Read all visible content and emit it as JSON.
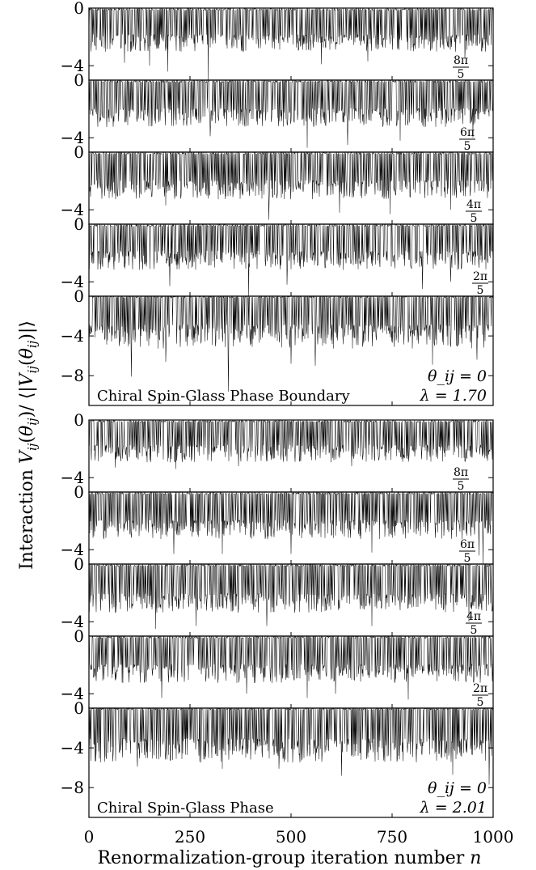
{
  "figure": {
    "ylabel": "Interaction V_ij(θ_ij)/ ⟨|V_ij(θ_ij)|⟩",
    "xlabel": "Renormalization-group iteration number n"
  },
  "chart_data": [
    {
      "type": "line",
      "block": "Chiral Spin-Glass Phase Boundary",
      "annotation": "Chiral Spin-Glass Phase Boundary",
      "lambda_label": "λ = 1.70",
      "theta_label": "θ_ij = 0",
      "xlim": [
        0,
        1000
      ],
      "x_ticks": [
        0,
        250,
        500,
        750,
        1000
      ],
      "series": [
        {
          "label": "8π/5",
          "frac_num": "8π",
          "frac_den": "5",
          "ylim": [
            -5,
            0
          ],
          "y_ticks": [
            "0",
            "−4"
          ],
          "mean": -1.5,
          "spread": 0.55,
          "spikes": [
            [
              88,
              -3.8
            ],
            [
              150,
              -4.0
            ],
            [
              195,
              -4.4
            ],
            [
              295,
              -5.0
            ],
            [
              575,
              -3.9
            ],
            [
              690,
              -3.7
            ],
            [
              930,
              -3.5
            ]
          ]
        },
        {
          "label": "6π/5",
          "frac_num": "6π",
          "frac_den": "5",
          "ylim": [
            -5,
            0
          ],
          "y_ticks": [
            "0",
            "−4"
          ],
          "mean": -1.6,
          "spread": 0.6,
          "spikes": [
            [
              300,
              -3.9
            ],
            [
              540,
              -4.7
            ],
            [
              640,
              -4.5
            ],
            [
              770,
              -4.2
            ],
            [
              950,
              -4.0
            ]
          ]
        },
        {
          "label": "4π/5",
          "frac_num": "4π",
          "frac_den": "5",
          "ylim": [
            -5,
            0
          ],
          "y_ticks": [
            "0",
            "−4"
          ],
          "mean": -1.6,
          "spread": 0.6,
          "spikes": [
            [
              190,
              -3.7
            ],
            [
              445,
              -4.7
            ],
            [
              620,
              -4.2
            ],
            [
              745,
              -4.3
            ],
            [
              895,
              -4.0
            ]
          ]
        },
        {
          "label": "2π/5",
          "frac_num": "2π",
          "frac_den": "5",
          "ylim": [
            -5,
            0
          ],
          "y_ticks": [
            "0",
            "−4"
          ],
          "mean": -1.5,
          "spread": 0.6,
          "spikes": [
            [
              200,
              -4.3
            ],
            [
              395,
              -5.0
            ],
            [
              490,
              -4.2
            ],
            [
              825,
              -4.5
            ],
            [
              895,
              -4.0
            ]
          ]
        },
        {
          "label": "0",
          "frac_num": "",
          "frac_den": "",
          "ylim": [
            -11,
            0
          ],
          "y_ticks": [
            "0",
            "−4",
            "−8"
          ],
          "mean": -2.2,
          "spread": 1.1,
          "spikes": [
            [
              105,
              -8.1
            ],
            [
              190,
              -6.6
            ],
            [
              345,
              -9.6
            ],
            [
              500,
              -6.8
            ],
            [
              560,
              -7.0
            ],
            [
              850,
              -6.9
            ],
            [
              960,
              -6.4
            ]
          ]
        }
      ]
    },
    {
      "type": "line",
      "block": "Chiral Spin-Glass Phase",
      "annotation": "Chiral Spin-Glass Phase",
      "lambda_label": "λ = 2.01",
      "theta_label": "θ_ij = 0",
      "xlim": [
        0,
        1000
      ],
      "x_ticks": [
        0,
        250,
        500,
        750,
        1000
      ],
      "series": [
        {
          "label": "8π/5",
          "frac_num": "8π",
          "frac_den": "5",
          "ylim": [
            -5,
            0
          ],
          "y_ticks": [
            "0",
            "−4"
          ],
          "mean": -1.4,
          "spread": 0.55,
          "spikes": [
            [
              65,
              -3.3
            ],
            [
              215,
              -3.4
            ],
            [
              370,
              -3.2
            ],
            [
              650,
              -3.2
            ]
          ]
        },
        {
          "label": "6π/5",
          "frac_num": "6π",
          "frac_den": "5",
          "ylim": [
            -5,
            0
          ],
          "y_ticks": [
            "0",
            "−4"
          ],
          "mean": -1.6,
          "spread": 0.6,
          "spikes": [
            [
              210,
              -4.3
            ],
            [
              330,
              -4.3
            ],
            [
              500,
              -4.3
            ],
            [
              700,
              -4.2
            ],
            [
              965,
              -4.4
            ],
            [
              975,
              -5.0
            ]
          ]
        },
        {
          "label": "4π/5",
          "frac_num": "4π",
          "frac_den": "5",
          "ylim": [
            -5,
            0
          ],
          "y_ticks": [
            "0",
            "−4"
          ],
          "mean": -1.7,
          "spread": 0.6,
          "spikes": [
            [
              165,
              -4.5
            ],
            [
              265,
              -4.3
            ],
            [
              440,
              -4.3
            ],
            [
              700,
              -4.3
            ],
            [
              940,
              -4.0
            ]
          ]
        },
        {
          "label": "2π/5",
          "frac_num": "2π",
          "frac_den": "5",
          "ylim": [
            -5,
            0
          ],
          "y_ticks": [
            "0",
            "−4"
          ],
          "mean": -1.6,
          "spread": 0.6,
          "spikes": [
            [
              180,
              -4.3
            ],
            [
              390,
              -4.0
            ],
            [
              540,
              -4.3
            ],
            [
              610,
              -4.0
            ],
            [
              790,
              -4.4
            ]
          ]
        },
        {
          "label": "0",
          "frac_num": "",
          "frac_den": "",
          "ylim": [
            -11,
            0
          ],
          "y_ticks": [
            "0",
            "−4",
            "−8"
          ],
          "mean": -2.4,
          "spread": 1.1,
          "spikes": [
            [
              120,
              -5.9
            ],
            [
              330,
              -6.1
            ],
            [
              470,
              -6.1
            ],
            [
              625,
              -6.8
            ],
            [
              900,
              -6.7
            ],
            [
              990,
              -7.7
            ]
          ]
        }
      ]
    }
  ]
}
